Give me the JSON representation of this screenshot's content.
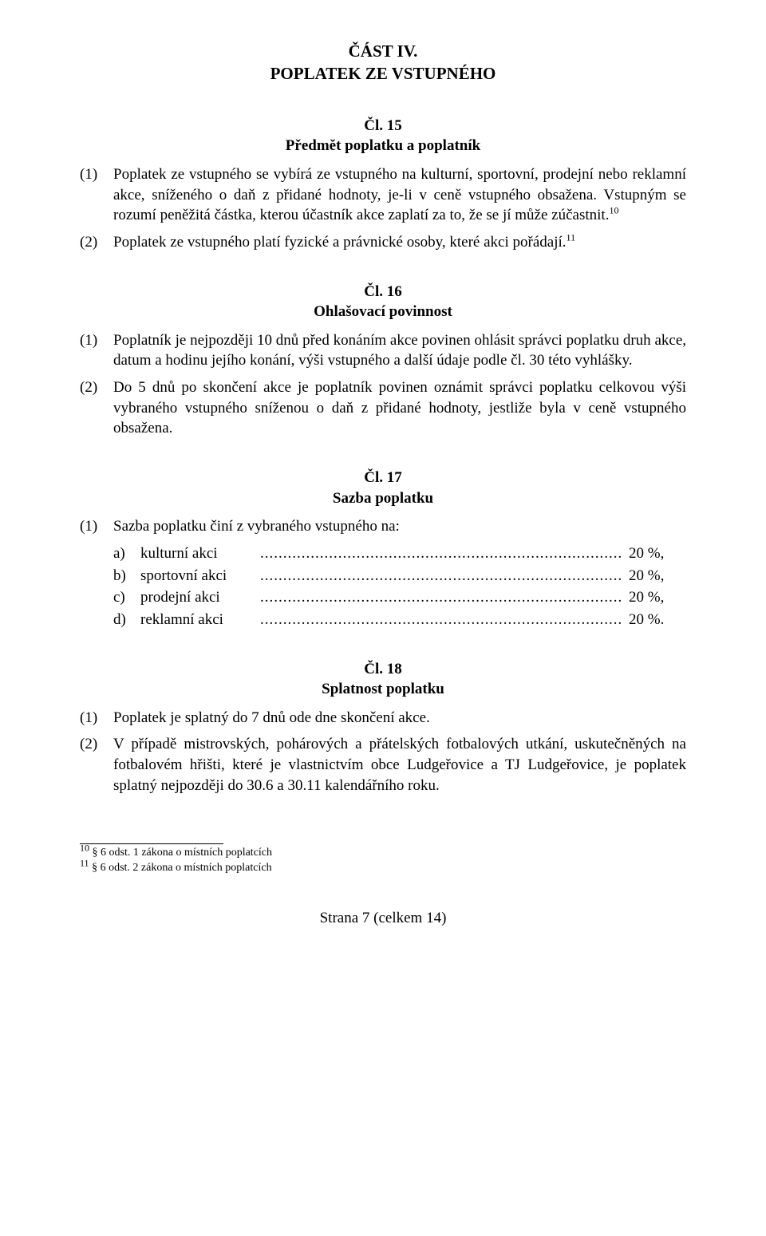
{
  "part": {
    "title": "ČÁST IV.",
    "subtitle": "POPLATEK ZE VSTUPNÉHO"
  },
  "articles": {
    "a15": {
      "num": "Čl. 15",
      "title": "Předmět poplatku a poplatník",
      "p1_num": "(1)",
      "p1_text": "Poplatek ze vstupného se vybírá ze vstupného na kulturní, sportovní, prodejní nebo reklamní akce, sníženého o daň z přidané hodnoty, je-li v ceně vstupného obsažena. Vstupným se rozumí peněžitá částka, kterou účastník akce zaplatí za to, že se jí může zúčastnit.",
      "p1_sup": "10",
      "p2_num": "(2)",
      "p2_text": "Poplatek ze vstupného platí fyzické a právnické osoby, které akci pořádají.",
      "p2_sup": "11"
    },
    "a16": {
      "num": "Čl. 16",
      "title": "Ohlašovací povinnost",
      "p1_num": "(1)",
      "p1_text": "Poplatník je nejpozději 10 dnů před konáním akce povinen ohlásit správci poplatku druh akce, datum a hodinu jejího konání, výši vstupného a další údaje podle čl. 30 této vyhlášky.",
      "p2_num": "(2)",
      "p2_text": "Do 5 dnů po skončení akce je poplatník povinen oznámit správci poplatku celkovou výši vybraného vstupného sníženou o daň z přidané hodnoty, jestliže byla v ceně vstupného obsažena."
    },
    "a17": {
      "num": "Čl. 17",
      "title": "Sazba poplatku",
      "p1_num": "(1)",
      "p1_text": "Sazba poplatku činí z vybraného vstupného na:",
      "items": [
        {
          "letter": "a)",
          "label": "kulturní akci",
          "value": "20 %,"
        },
        {
          "letter": "b)",
          "label": "sportovní akci",
          "value": "20 %,"
        },
        {
          "letter": "c)",
          "label": "prodejní akci",
          "value": "20 %,"
        },
        {
          "letter": "d)",
          "label": "reklamní akci",
          "value": "20 %."
        }
      ]
    },
    "a18": {
      "num": "Čl. 18",
      "title": "Splatnost poplatku",
      "p1_num": "(1)",
      "p1_text": "Poplatek je splatný do 7 dnů ode dne skončení akce.",
      "p2_num": "(2)",
      "p2_text": "V případě mistrovských, pohárových a přátelských fotbalových utkání, uskutečněných na fotbalovém hřišti, které je vlastnictvím obce Ludgeřovice a TJ Ludgeřovice, je poplatek splatný nejpozději do 30.6 a 30.11 kalendářního roku."
    }
  },
  "footnotes": {
    "f10_sup": "10",
    "f10_text": " § 6 odst. 1 zákona o místních poplatcích",
    "f11_sup": "11",
    "f11_text": " § 6 odst. 2 zákona o místních poplatcích"
  },
  "footer": "Strana 7 (celkem 14)"
}
